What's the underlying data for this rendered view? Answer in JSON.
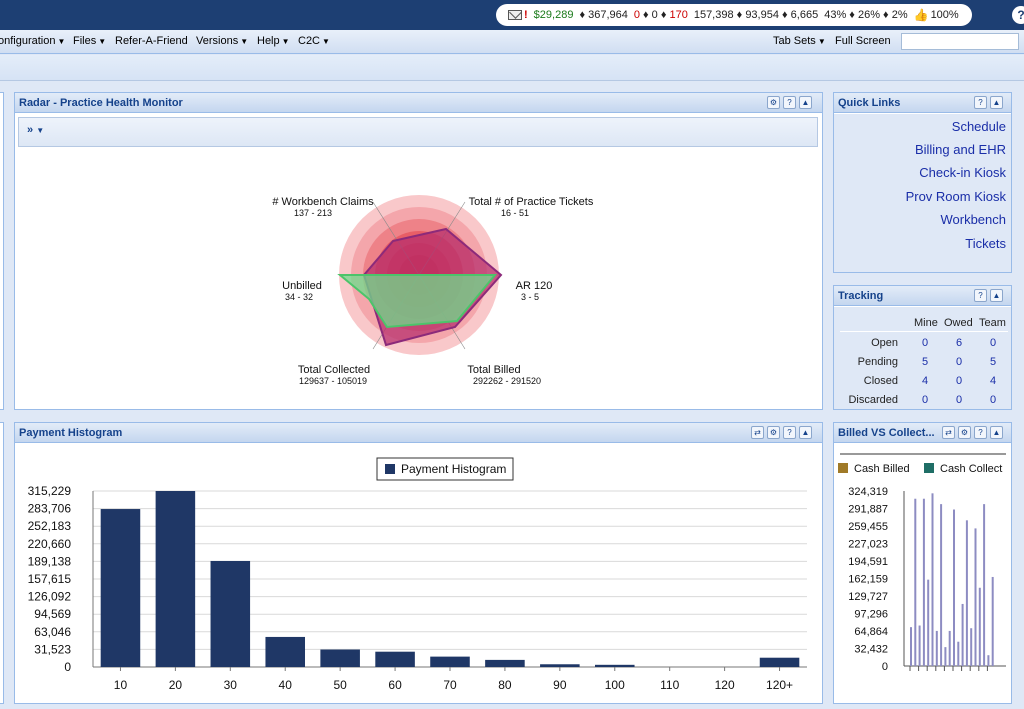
{
  "status": {
    "amount": "$29,289",
    "seg1": "♦ 367,964",
    "seg2a": "0",
    "seg2b": "♦ 0 ♦",
    "seg2c": "170",
    "seg3": "157,398 ♦ 93,954 ♦ 6,665",
    "seg4": "43% ♦ 26% ♦ 2%",
    "seg5": "100%"
  },
  "help_label": "?",
  "menu": {
    "items": [
      "onfiguration",
      "Files",
      "Refer-A-Friend",
      "Versions",
      "Help",
      "C2C"
    ],
    "right": [
      "Tab Sets",
      "Full Screen"
    ]
  },
  "radar": {
    "title": "Radar - Practice Health Monitor",
    "toolbar_label": "»",
    "axes": [
      {
        "label": "# Workbench Claims",
        "range": "137 - 213"
      },
      {
        "label": "Total # of Practice Tickets",
        "range": "16 - 51"
      },
      {
        "label": "AR 120",
        "range": "3 - 5"
      },
      {
        "label": "Total Billed",
        "range": "292262 - 291520"
      },
      {
        "label": "Total Collected",
        "range": "129637 - 105019"
      },
      {
        "label": "Unbilled",
        "range": "34 - 32"
      }
    ]
  },
  "quick_links": {
    "title": "Quick Links",
    "links": [
      "Schedule",
      "Billing and EHR",
      "Check-in Kiosk",
      "Prov Room Kiosk",
      "Workbench",
      "Tickets"
    ]
  },
  "tracking": {
    "title": "Tracking",
    "columns": [
      "Mine",
      "Owed",
      "Team"
    ],
    "rows": [
      {
        "label": "Open",
        "values": [
          "0",
          "6",
          "0"
        ]
      },
      {
        "label": "Pending",
        "values": [
          "5",
          "0",
          "5"
        ]
      },
      {
        "label": "Closed",
        "values": [
          "4",
          "0",
          "4"
        ]
      },
      {
        "label": "Discarded",
        "values": [
          "0",
          "0",
          "0"
        ]
      }
    ]
  },
  "histogram": {
    "title": "Payment Histogram"
  },
  "billed_vs": {
    "title": "Billed VS Collect..."
  },
  "chart_data": [
    {
      "type": "bar",
      "legend": "Payment Histogram",
      "categories": [
        "10",
        "20",
        "30",
        "40",
        "50",
        "60",
        "70",
        "80",
        "90",
        "100",
        "110",
        "120",
        "120+"
      ],
      "values": [
        289000,
        322000,
        194000,
        55000,
        32000,
        28000,
        19000,
        13000,
        5000,
        4000,
        0,
        0,
        17000
      ],
      "yticks": [
        "0",
        "31,523",
        "63,046",
        "94,569",
        "126,092",
        "157,615",
        "189,138",
        "220,660",
        "252,183",
        "283,706",
        "315,229"
      ],
      "ylim": [
        0,
        322000
      ],
      "grid": true,
      "legend_position": "top-center",
      "color": "#1f3766"
    },
    {
      "type": "bar",
      "series": [
        {
          "name": "Cash Billed",
          "color": "#a07a28",
          "values": [
            0,
            0,
            0,
            0,
            0,
            0,
            0,
            0,
            0,
            0,
            0,
            0,
            0,
            0,
            0,
            0,
            0,
            0,
            0,
            0
          ]
        },
        {
          "name": "Cash Collect",
          "color": "#1f6e66",
          "values": [
            0,
            0,
            0,
            0,
            0,
            0,
            0,
            0,
            0,
            0,
            0,
            0,
            0,
            0,
            0,
            0,
            0,
            0,
            0,
            0
          ]
        },
        {
          "name": "",
          "color": "#8d8cc2",
          "values": [
            72000,
            310000,
            75000,
            310000,
            160000,
            320000,
            65000,
            300000,
            35000,
            65000,
            290000,
            45000,
            115000,
            270000,
            70000,
            255000,
            145000,
            300000,
            20000,
            165000
          ]
        }
      ],
      "yticks": [
        "0",
        "32,432",
        "64,864",
        "97,296",
        "129,727",
        "162,159",
        "194,591",
        "227,023",
        "259,455",
        "291,887",
        "324,319"
      ],
      "ylim": [
        0,
        324319
      ],
      "legend_position": "top"
    }
  ]
}
